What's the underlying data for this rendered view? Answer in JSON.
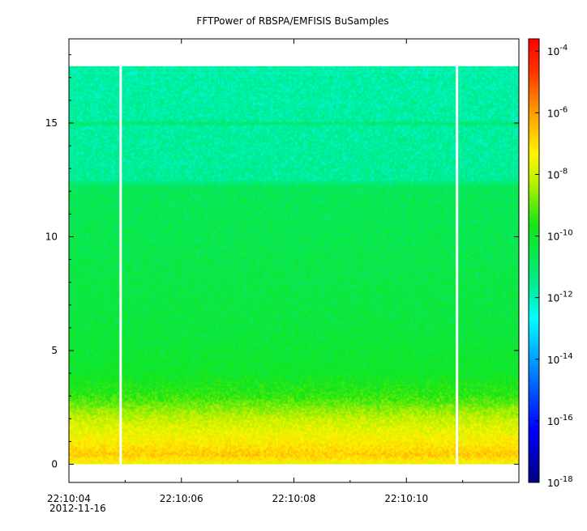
{
  "chart_data": {
    "type": "heatmap",
    "title": "FFTPower of RBSPA/EMFISIS  BuSamples",
    "xlabel": "",
    "ylabel": "",
    "x_ticks": [
      "22:10:04",
      "22:10:06",
      "22:10:08",
      "22:10:10"
    ],
    "x_tick_values": [
      4,
      6,
      8,
      10
    ],
    "x_date_label": "2012-11-16",
    "xlim": [
      4,
      12
    ],
    "y_ticks": [
      "0",
      "5",
      "10",
      "15"
    ],
    "y_tick_values": [
      0,
      5,
      10,
      15
    ],
    "ylim": [
      -0.8,
      18.7
    ],
    "data_ymax": 17.5,
    "gaps_x": [
      4.92,
      10.9
    ],
    "noise_line_y": 15,
    "zlog": true,
    "zlim_exponent": [
      -18,
      -3.6
    ],
    "colorbar_ticks": [
      {
        "base": "10",
        "exp": "-4",
        "value": -4
      },
      {
        "base": "10",
        "exp": "-6",
        "value": -6
      },
      {
        "base": "10",
        "exp": "-8",
        "value": -8
      },
      {
        "base": "10",
        "exp": "-10",
        "value": -10
      },
      {
        "base": "10",
        "exp": "-12",
        "value": -12
      },
      {
        "base": "10",
        "exp": "-14",
        "value": -14
      },
      {
        "base": "10",
        "exp": "-16",
        "value": -16
      },
      {
        "base": "10",
        "exp": "-18",
        "value": -18
      }
    ],
    "profile_log10_power": [
      {
        "y": 0.1,
        "z": -7.4
      },
      {
        "y": 0.4,
        "z": -6.7
      },
      {
        "y": 1.0,
        "z": -7.3
      },
      {
        "y": 2.0,
        "z": -8.1
      },
      {
        "y": 3.0,
        "z": -9.4
      },
      {
        "y": 4.0,
        "z": -10.0
      },
      {
        "y": 6.0,
        "z": -10.3
      },
      {
        "y": 9.0,
        "z": -10.5
      },
      {
        "y": 12.2,
        "z": -10.7
      },
      {
        "y": 12.5,
        "z": -11.6
      },
      {
        "y": 17.5,
        "z": -11.8
      }
    ],
    "colors": {
      "frame": "#000000",
      "gap": "#ffffff"
    }
  }
}
